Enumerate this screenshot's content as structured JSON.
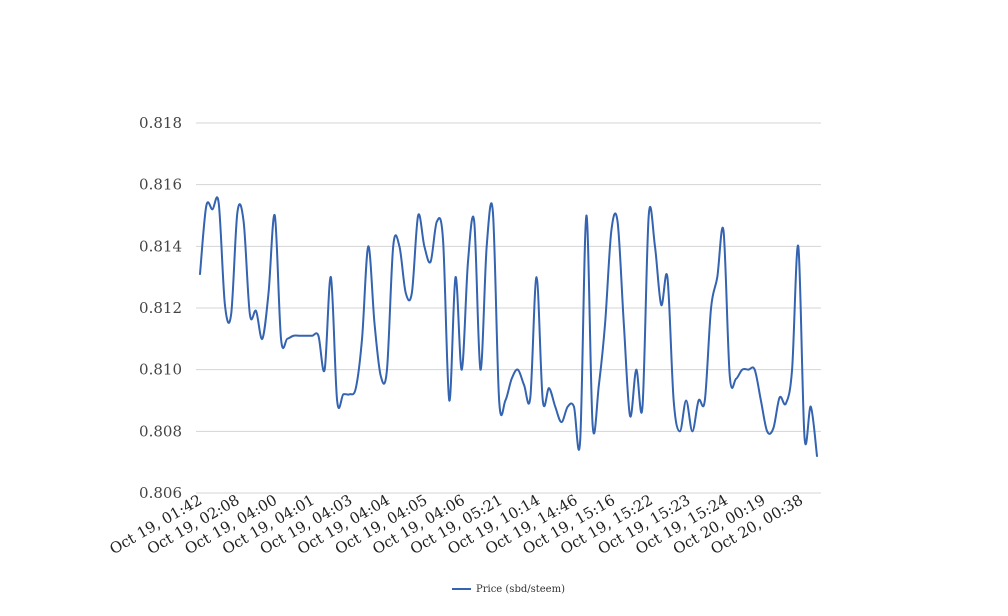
{
  "chart_data": {
    "type": "line",
    "title": "",
    "xlabel": "",
    "ylabel": "",
    "ylim": [
      0.806,
      0.818
    ],
    "yticks": [
      0.806,
      0.808,
      0.81,
      0.812,
      0.814,
      0.816,
      0.818
    ],
    "ytick_labels": [
      "0.806",
      "0.808",
      "0.810",
      "0.812",
      "0.814",
      "0.816",
      "0.818"
    ],
    "x_tick_labels": [
      "Oct 19, 01:42",
      "Oct 19, 02:08",
      "Oct 19, 04:00",
      "Oct 19, 04:01",
      "Oct 19, 04:03",
      "Oct 19, 04:04",
      "Oct 19, 04:05",
      "Oct 19, 04:06",
      "Oct 19, 05:21",
      "Oct 19, 10:14",
      "Oct 19, 14:46",
      "Oct 19, 15:16",
      "Oct 19, 15:22",
      "Oct 19, 15:23",
      "Oct 19, 15:24",
      "Oct 20, 00:19",
      "Oct 20, 00:38"
    ],
    "grid": true,
    "legend_position": "bottom",
    "line_color": "#3463b0",
    "series": [
      {
        "name": "Price (sbd/steem)",
        "values": [
          0.8131,
          0.8153,
          0.8152,
          0.8154,
          0.8121,
          0.8118,
          0.8151,
          0.8148,
          0.8118,
          0.8119,
          0.811,
          0.8125,
          0.815,
          0.811,
          0.811,
          0.8111,
          0.8111,
          0.8111,
          0.8111,
          0.8111,
          0.81,
          0.813,
          0.809,
          0.8092,
          0.8092,
          0.8094,
          0.811,
          0.814,
          0.8115,
          0.8098,
          0.81,
          0.814,
          0.814,
          0.8125,
          0.8125,
          0.815,
          0.814,
          0.8135,
          0.8148,
          0.8142,
          0.809,
          0.813,
          0.81,
          0.8135,
          0.8148,
          0.81,
          0.814,
          0.8151,
          0.809,
          0.809,
          0.8097,
          0.81,
          0.8095,
          0.8091,
          0.813,
          0.809,
          0.8094,
          0.8088,
          0.8083,
          0.8088,
          0.8088,
          0.8077,
          0.815,
          0.8082,
          0.8095,
          0.8115,
          0.8145,
          0.8148,
          0.8115,
          0.8085,
          0.81,
          0.8088,
          0.815,
          0.814,
          0.8121,
          0.813,
          0.809,
          0.808,
          0.809,
          0.808,
          0.809,
          0.809,
          0.812,
          0.813,
          0.8145,
          0.8098,
          0.8097,
          0.81,
          0.81,
          0.81,
          0.809,
          0.808,
          0.8081,
          0.8091,
          0.8089,
          0.81,
          0.814,
          0.8078,
          0.8088,
          0.8072
        ]
      }
    ]
  }
}
